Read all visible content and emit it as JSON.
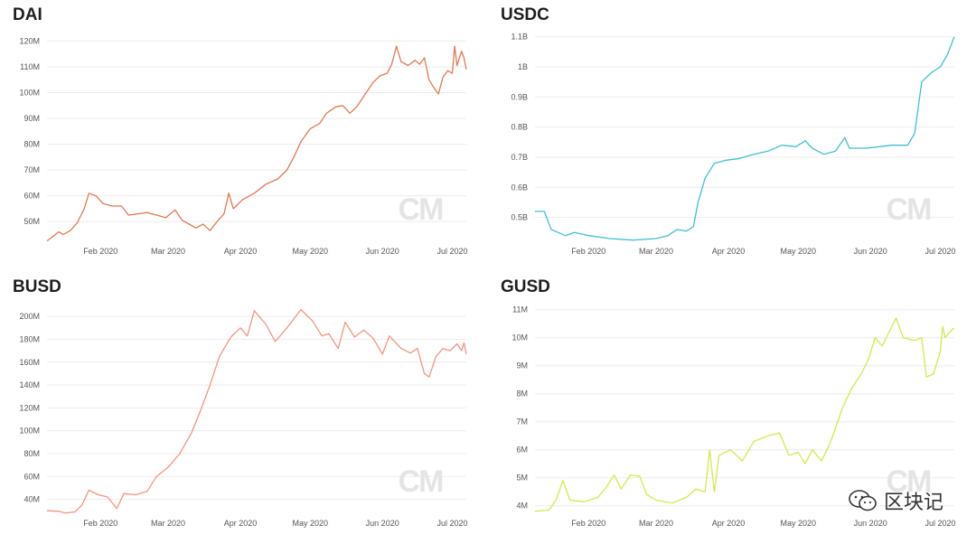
{
  "watermark": "CM",
  "brand": {
    "text": "区块记",
    "icon": "wechat-icon"
  },
  "chart_data": [
    {
      "type": "line",
      "title": "DAI",
      "color": "#e07a52",
      "yticks": [
        50,
        60,
        70,
        80,
        90,
        100,
        110,
        120
      ],
      "ytick_labels": [
        "50M",
        "60M",
        "70M",
        "80M",
        "90M",
        "100M",
        "110M",
        "120M"
      ],
      "ylim": [
        42,
        124
      ],
      "xlim": [
        "2020-01-09",
        "2020-07-07"
      ],
      "xticks": [
        "2020-02-01",
        "2020-03-01",
        "2020-04-01",
        "2020-05-01",
        "2020-06-01",
        "2020-07-01"
      ],
      "xtick_labels": [
        "Feb 2020",
        "Mar 2020",
        "Apr 2020",
        "May 2020",
        "Jun 2020",
        "Jul 2020"
      ],
      "series": [
        {
          "points": [
            [
              "2020-01-09",
              42.5
            ],
            [
              "2020-01-12",
              44.5
            ],
            [
              "2020-01-14",
              46.0
            ],
            [
              "2020-01-16",
              45.0
            ],
            [
              "2020-01-19",
              46.5
            ],
            [
              "2020-01-22",
              49.5
            ],
            [
              "2020-01-25",
              55.0
            ],
            [
              "2020-01-27",
              61.0
            ],
            [
              "2020-01-30",
              60.0
            ],
            [
              "2020-02-02",
              57.0
            ],
            [
              "2020-02-06",
              56.0
            ],
            [
              "2020-02-10",
              56.0
            ],
            [
              "2020-02-13",
              52.5
            ],
            [
              "2020-02-17",
              53.0
            ],
            [
              "2020-02-21",
              53.5
            ],
            [
              "2020-02-25",
              52.5
            ],
            [
              "2020-02-29",
              51.5
            ],
            [
              "2020-03-04",
              54.5
            ],
            [
              "2020-03-07",
              50.5
            ],
            [
              "2020-03-10",
              49.0
            ],
            [
              "2020-03-13",
              47.5
            ],
            [
              "2020-03-16",
              49.0
            ],
            [
              "2020-03-19",
              46.5
            ],
            [
              "2020-03-22",
              50.0
            ],
            [
              "2020-03-25",
              53.0
            ],
            [
              "2020-03-27",
              61.0
            ],
            [
              "2020-03-29",
              55.0
            ],
            [
              "2020-04-02",
              58.5
            ],
            [
              "2020-04-07",
              61.0
            ],
            [
              "2020-04-12",
              64.5
            ],
            [
              "2020-04-17",
              66.5
            ],
            [
              "2020-04-21",
              70.0
            ],
            [
              "2020-04-24",
              75.0
            ],
            [
              "2020-04-27",
              81.0
            ],
            [
              "2020-05-01",
              86.0
            ],
            [
              "2020-05-05",
              88.0
            ],
            [
              "2020-05-08",
              92.0
            ],
            [
              "2020-05-12",
              94.5
            ],
            [
              "2020-05-15",
              95.0
            ],
            [
              "2020-05-18",
              92.0
            ],
            [
              "2020-05-21",
              94.5
            ],
            [
              "2020-05-25",
              100.0
            ],
            [
              "2020-05-28",
              104.0
            ],
            [
              "2020-05-31",
              106.5
            ],
            [
              "2020-06-03",
              107.5
            ],
            [
              "2020-06-05",
              111.0
            ],
            [
              "2020-06-07",
              118.0
            ],
            [
              "2020-06-09",
              112.0
            ],
            [
              "2020-06-12",
              110.5
            ],
            [
              "2020-06-15",
              112.5
            ],
            [
              "2020-06-17",
              111.0
            ],
            [
              "2020-06-19",
              113.5
            ],
            [
              "2020-06-21",
              105.0
            ],
            [
              "2020-06-23",
              102.0
            ],
            [
              "2020-06-25",
              99.5
            ],
            [
              "2020-06-27",
              106.0
            ],
            [
              "2020-06-29",
              108.5
            ],
            [
              "2020-07-01",
              107.5
            ],
            [
              "2020-07-02",
              118.0
            ],
            [
              "2020-07-03",
              110.5
            ],
            [
              "2020-07-05",
              116.0
            ],
            [
              "2020-07-06",
              113.5
            ],
            [
              "2020-07-07",
              109.0
            ]
          ]
        }
      ]
    },
    {
      "type": "line",
      "title": "USDC",
      "color": "#3fc1ce",
      "yticks": [
        0.5,
        0.6,
        0.7,
        0.8,
        0.9,
        1.0,
        1.1
      ],
      "ytick_labels": [
        "0.5B",
        "0.6B",
        "0.7B",
        "0.8B",
        "0.9B",
        "1B",
        "1.1B"
      ],
      "ylim": [
        0.418,
        1.12
      ],
      "xlim": [
        "2020-01-09",
        "2020-07-07"
      ],
      "xticks": [
        "2020-02-01",
        "2020-03-01",
        "2020-04-01",
        "2020-05-01",
        "2020-06-01",
        "2020-07-01"
      ],
      "xtick_labels": [
        "Feb 2020",
        "Mar 2020",
        "Apr 2020",
        "May 2020",
        "Jun 2020",
        "Jul 2020"
      ],
      "series": [
        {
          "points": [
            [
              "2020-01-09",
              0.52
            ],
            [
              "2020-01-13",
              0.52
            ],
            [
              "2020-01-16",
              0.46
            ],
            [
              "2020-01-19",
              0.45
            ],
            [
              "2020-01-22",
              0.44
            ],
            [
              "2020-01-26",
              0.45
            ],
            [
              "2020-02-01",
              0.44
            ],
            [
              "2020-02-10",
              0.43
            ],
            [
              "2020-02-20",
              0.425
            ],
            [
              "2020-03-01",
              0.43
            ],
            [
              "2020-03-06",
              0.44
            ],
            [
              "2020-03-10",
              0.46
            ],
            [
              "2020-03-14",
              0.455
            ],
            [
              "2020-03-17",
              0.47
            ],
            [
              "2020-03-19",
              0.55
            ],
            [
              "2020-03-22",
              0.63
            ],
            [
              "2020-03-26",
              0.68
            ],
            [
              "2020-03-31",
              0.69
            ],
            [
              "2020-04-05",
              0.695
            ],
            [
              "2020-04-12",
              0.71
            ],
            [
              "2020-04-18",
              0.72
            ],
            [
              "2020-04-24",
              0.74
            ],
            [
              "2020-04-30",
              0.735
            ],
            [
              "2020-05-04",
              0.755
            ],
            [
              "2020-05-07",
              0.73
            ],
            [
              "2020-05-12",
              0.71
            ],
            [
              "2020-05-17",
              0.72
            ],
            [
              "2020-05-21",
              0.765
            ],
            [
              "2020-05-23",
              0.73
            ],
            [
              "2020-05-30",
              0.73
            ],
            [
              "2020-06-05",
              0.735
            ],
            [
              "2020-06-10",
              0.74
            ],
            [
              "2020-06-14",
              0.74
            ],
            [
              "2020-06-17",
              0.74
            ],
            [
              "2020-06-20",
              0.78
            ],
            [
              "2020-06-23",
              0.95
            ],
            [
              "2020-06-27",
              0.98
            ],
            [
              "2020-07-01",
              1.0
            ],
            [
              "2020-07-04",
              1.04
            ],
            [
              "2020-07-07",
              1.1
            ]
          ]
        }
      ]
    },
    {
      "type": "line",
      "title": "BUSD",
      "color": "#f39480",
      "yticks": [
        40,
        60,
        80,
        100,
        120,
        140,
        160,
        180,
        200
      ],
      "ytick_labels": [
        "40M",
        "60M",
        "80M",
        "100M",
        "120M",
        "140M",
        "160M",
        "180M",
        "200M"
      ],
      "ylim": [
        27,
        212
      ],
      "xlim": [
        "2020-01-09",
        "2020-07-07"
      ],
      "xticks": [
        "2020-02-01",
        "2020-03-01",
        "2020-04-01",
        "2020-05-01",
        "2020-06-01",
        "2020-07-01"
      ],
      "xtick_labels": [
        "Feb 2020",
        "Mar 2020",
        "Apr 2020",
        "May 2020",
        "Jun 2020",
        "Jul 2020"
      ],
      "series": [
        {
          "points": [
            [
              "2020-01-09",
              30
            ],
            [
              "2020-01-14",
              29.5
            ],
            [
              "2020-01-17",
              28
            ],
            [
              "2020-01-21",
              29
            ],
            [
              "2020-01-24",
              35
            ],
            [
              "2020-01-27",
              48
            ],
            [
              "2020-01-31",
              44
            ],
            [
              "2020-02-04",
              42
            ],
            [
              "2020-02-08",
              32
            ],
            [
              "2020-02-11",
              45
            ],
            [
              "2020-02-16",
              44
            ],
            [
              "2020-02-21",
              47
            ],
            [
              "2020-02-25",
              60
            ],
            [
              "2020-03-01",
              68
            ],
            [
              "2020-03-06",
              80
            ],
            [
              "2020-03-11",
              98
            ],
            [
              "2020-03-15",
              118
            ],
            [
              "2020-03-19",
              140
            ],
            [
              "2020-03-23",
              165
            ],
            [
              "2020-03-28",
              182
            ],
            [
              "2020-04-01",
              190
            ],
            [
              "2020-04-04",
              183
            ],
            [
              "2020-04-07",
              205
            ],
            [
              "2020-04-12",
              193
            ],
            [
              "2020-04-16",
              178
            ],
            [
              "2020-04-21",
              190
            ],
            [
              "2020-04-27",
              206
            ],
            [
              "2020-05-02",
              196
            ],
            [
              "2020-05-06",
              183
            ],
            [
              "2020-05-09",
              185
            ],
            [
              "2020-05-13",
              172
            ],
            [
              "2020-05-16",
              195
            ],
            [
              "2020-05-20",
              182
            ],
            [
              "2020-05-24",
              188
            ],
            [
              "2020-05-28",
              181
            ],
            [
              "2020-06-01",
              167
            ],
            [
              "2020-06-04",
              183
            ],
            [
              "2020-06-09",
              172
            ],
            [
              "2020-06-13",
              168
            ],
            [
              "2020-06-16",
              172
            ],
            [
              "2020-06-19",
              150
            ],
            [
              "2020-06-21",
              147
            ],
            [
              "2020-06-24",
              165
            ],
            [
              "2020-06-27",
              172
            ],
            [
              "2020-06-30",
              170
            ],
            [
              "2020-07-03",
              176
            ],
            [
              "2020-07-05",
              170
            ],
            [
              "2020-07-06",
              177
            ],
            [
              "2020-07-07",
              167
            ]
          ]
        }
      ]
    },
    {
      "type": "line",
      "title": "GUSD",
      "color": "#d7e84a",
      "yticks": [
        4,
        5,
        6,
        7,
        8,
        9,
        10,
        11
      ],
      "ytick_labels": [
        "4M",
        "5M",
        "6M",
        "7M",
        "8M",
        "9M",
        "10M",
        "11M"
      ],
      "ylim": [
        3.7,
        11.25
      ],
      "xlim": [
        "2020-01-09",
        "2020-07-07"
      ],
      "xticks": [
        "2020-02-01",
        "2020-03-01",
        "2020-04-01",
        "2020-05-01",
        "2020-06-01",
        "2020-07-01"
      ],
      "xtick_labels": [
        "Feb 2020",
        "Mar 2020",
        "Apr 2020",
        "May 2020",
        "Jun 2020",
        "Jul 2020"
      ],
      "series": [
        {
          "points": [
            [
              "2020-01-09",
              3.8
            ],
            [
              "2020-01-15",
              3.85
            ],
            [
              "2020-01-18",
              4.2
            ],
            [
              "2020-01-21",
              4.9
            ],
            [
              "2020-01-24",
              4.2
            ],
            [
              "2020-01-30",
              4.15
            ],
            [
              "2020-02-05",
              4.3
            ],
            [
              "2020-02-09",
              4.7
            ],
            [
              "2020-02-12",
              5.1
            ],
            [
              "2020-02-15",
              4.6
            ],
            [
              "2020-02-19",
              5.1
            ],
            [
              "2020-02-23",
              5.05
            ],
            [
              "2020-02-26",
              4.4
            ],
            [
              "2020-03-01",
              4.2
            ],
            [
              "2020-03-08",
              4.1
            ],
            [
              "2020-03-14",
              4.3
            ],
            [
              "2020-03-18",
              4.6
            ],
            [
              "2020-03-22",
              4.5
            ],
            [
              "2020-03-24",
              6.0
            ],
            [
              "2020-03-26",
              4.5
            ],
            [
              "2020-03-28",
              5.8
            ],
            [
              "2020-04-02",
              6.0
            ],
            [
              "2020-04-07",
              5.6
            ],
            [
              "2020-04-12",
              6.3
            ],
            [
              "2020-04-18",
              6.5
            ],
            [
              "2020-04-23",
              6.6
            ],
            [
              "2020-04-27",
              5.8
            ],
            [
              "2020-05-01",
              5.9
            ],
            [
              "2020-05-04",
              5.5
            ],
            [
              "2020-05-07",
              6.0
            ],
            [
              "2020-05-11",
              5.6
            ],
            [
              "2020-05-15",
              6.3
            ],
            [
              "2020-05-20",
              7.5
            ],
            [
              "2020-05-24",
              8.2
            ],
            [
              "2020-05-28",
              8.7
            ],
            [
              "2020-05-31",
              9.2
            ],
            [
              "2020-06-03",
              10.0
            ],
            [
              "2020-06-06",
              9.7
            ],
            [
              "2020-06-09",
              10.2
            ],
            [
              "2020-06-12",
              10.7
            ],
            [
              "2020-06-15",
              10.0
            ],
            [
              "2020-06-20",
              9.9
            ],
            [
              "2020-06-23",
              10.0
            ],
            [
              "2020-06-25",
              8.6
            ],
            [
              "2020-06-28",
              8.7
            ],
            [
              "2020-07-01",
              9.5
            ],
            [
              "2020-07-02",
              10.4
            ],
            [
              "2020-07-03",
              10.0
            ],
            [
              "2020-07-05",
              10.2
            ],
            [
              "2020-07-07",
              10.35
            ]
          ]
        }
      ]
    }
  ]
}
